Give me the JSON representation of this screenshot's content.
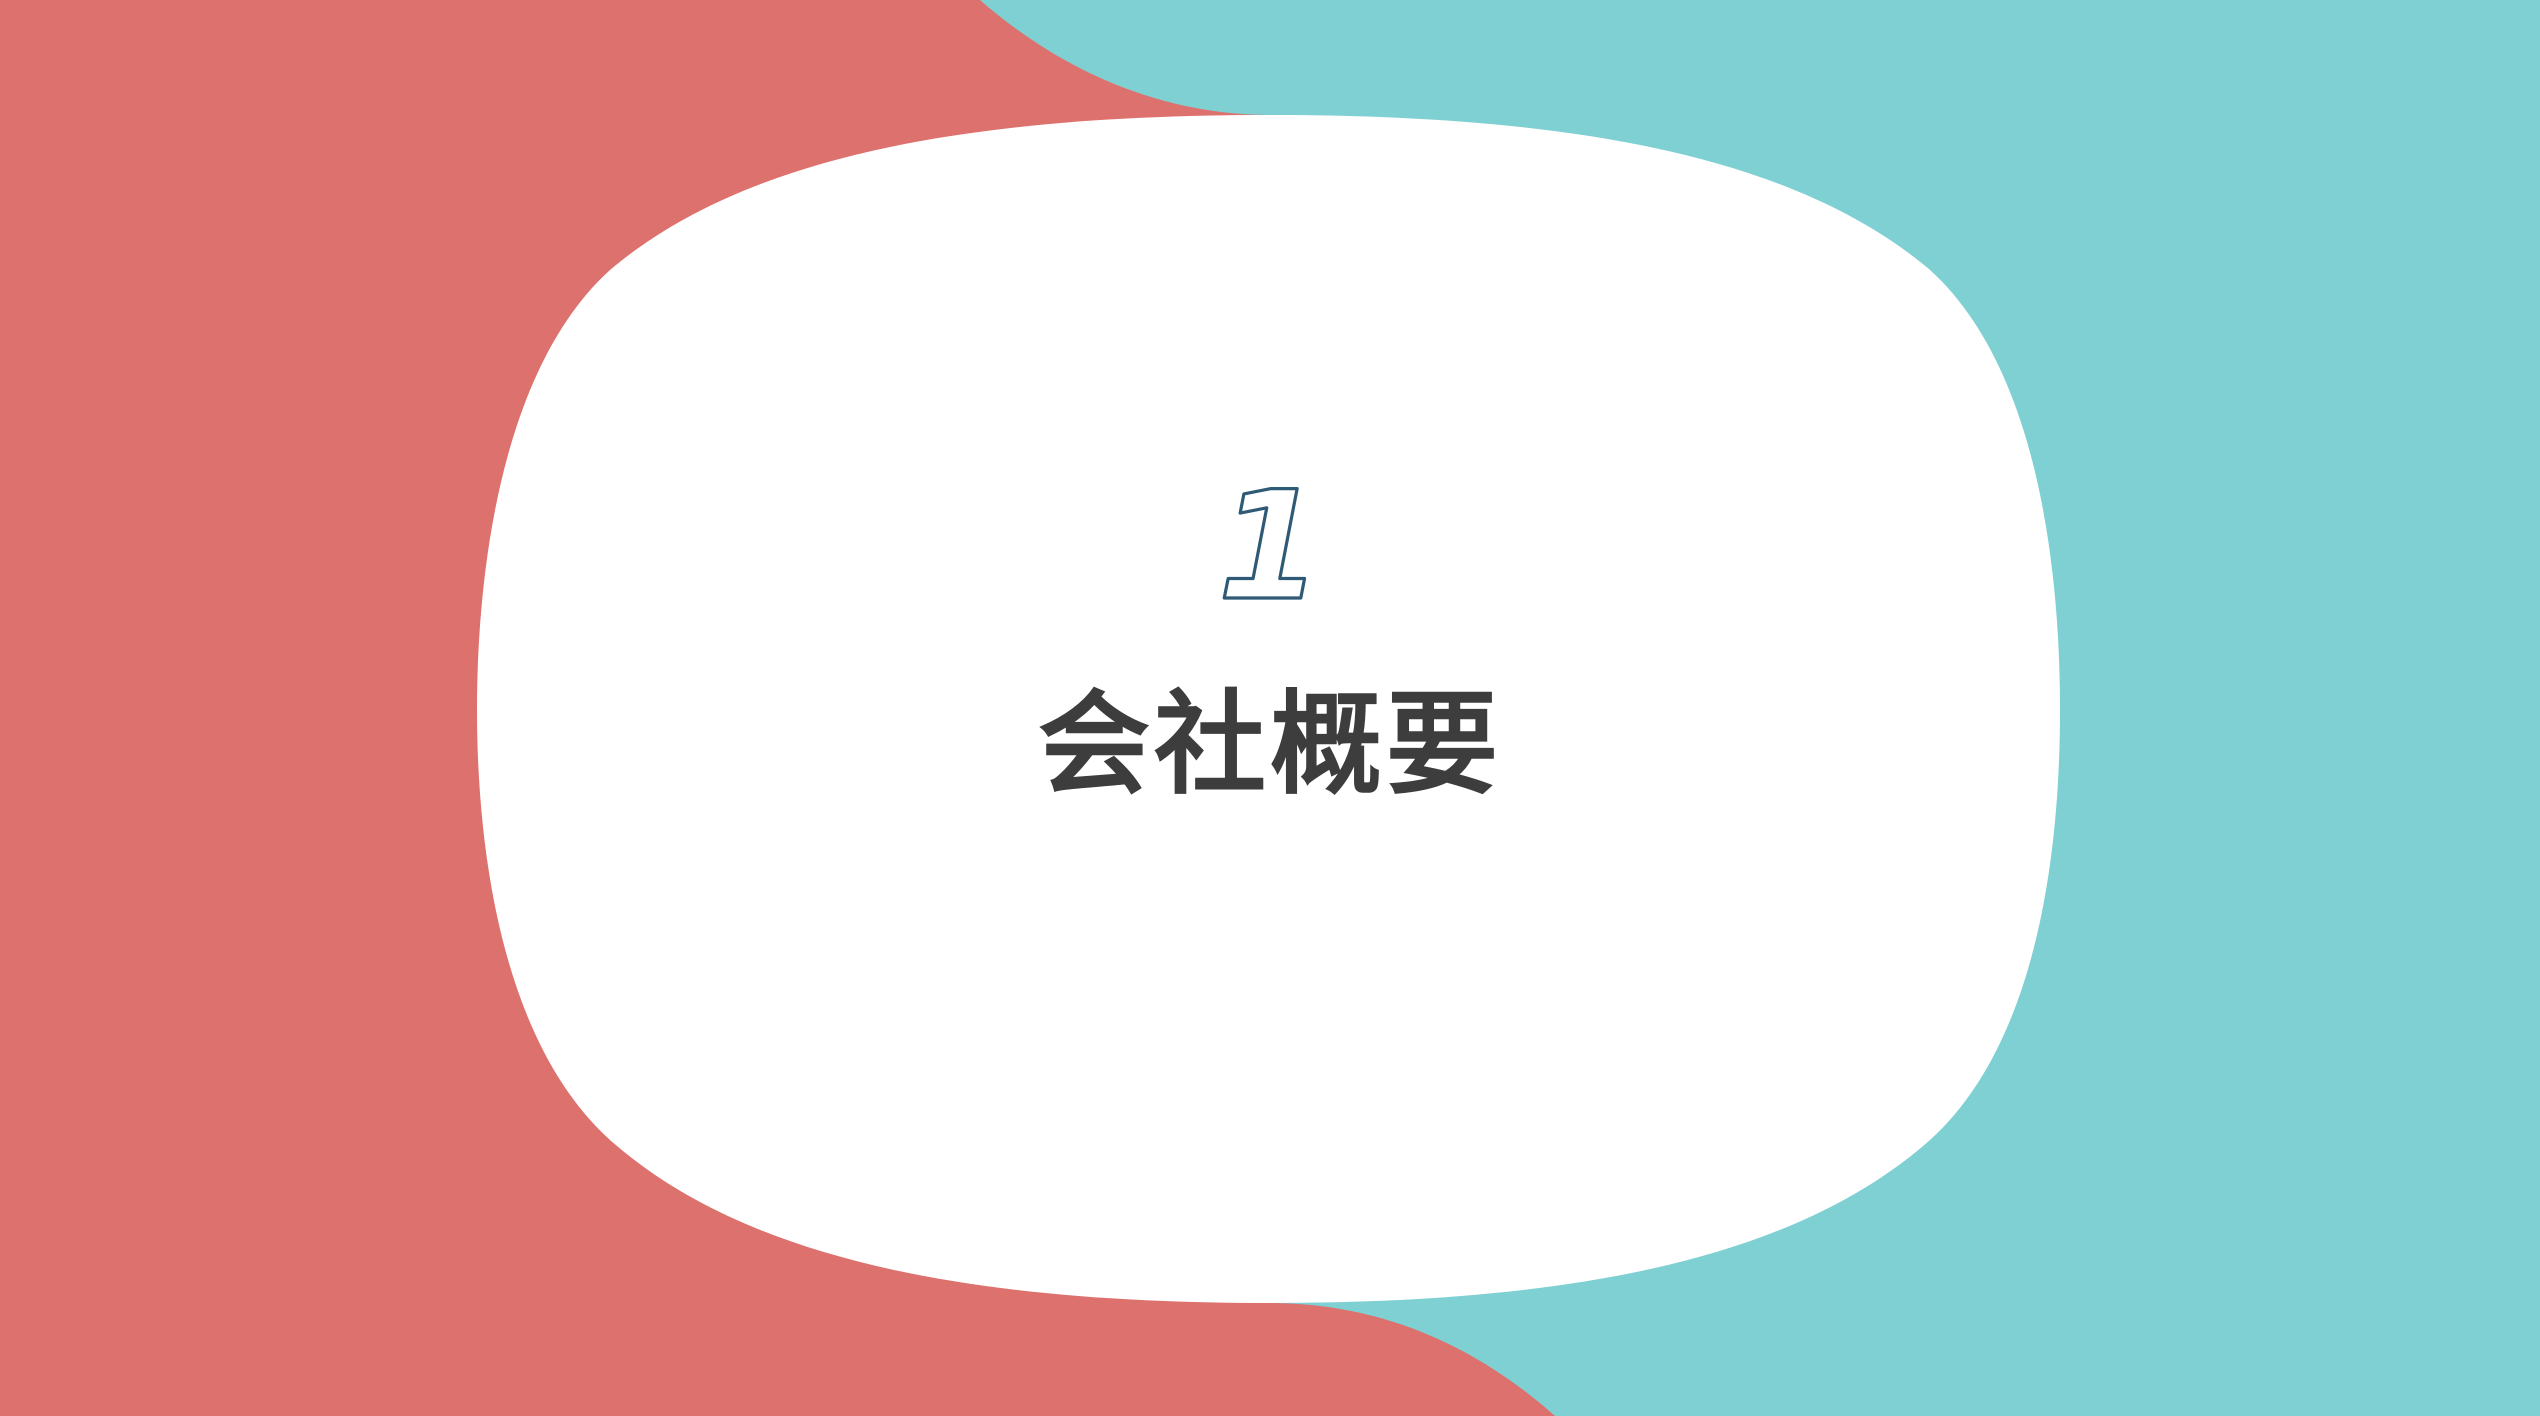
{
  "slide": {
    "section_number": "1",
    "section_title": "会社概要"
  },
  "colors": {
    "left_shape": "#dd716d",
    "right_shape": "#7fd0d3",
    "center_panel": "#ffffff",
    "number_outline": "#2e5a75",
    "title_text": "#3d3d3d"
  }
}
